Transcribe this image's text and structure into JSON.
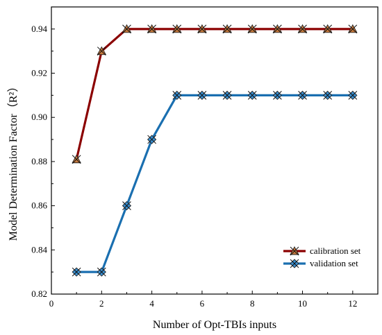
{
  "chart_data": {
    "type": "line",
    "xlabel": "Number of Opt-TBIs inputs",
    "ylabel": "Model Determination Factor（R²）",
    "xlim": [
      0,
      13
    ],
    "ylim": [
      0.82,
      0.95
    ],
    "x_ticks": [
      0,
      2,
      4,
      6,
      8,
      10,
      12
    ],
    "y_ticks": [
      0.82,
      0.84,
      0.86,
      0.88,
      0.9,
      0.92,
      0.94
    ],
    "x_tick_labels": [
      "0",
      "2",
      "4",
      "6",
      "8",
      "10",
      "12"
    ],
    "y_tick_labels": [
      "0.82",
      "0.84",
      "0.86",
      "0.88",
      "0.90",
      "0.92",
      "0.94"
    ],
    "grid": false,
    "legend_position": "bottom-right",
    "x": [
      1,
      2,
      3,
      4,
      5,
      6,
      7,
      8,
      9,
      10,
      11,
      12
    ],
    "series": [
      {
        "name": "calibration set",
        "color": "#8b0000",
        "marker": "triangle",
        "values": [
          0.881,
          0.93,
          0.94,
          0.94,
          0.94,
          0.94,
          0.94,
          0.94,
          0.94,
          0.94,
          0.94,
          0.94
        ]
      },
      {
        "name": "validation  set",
        "color": "#1a6fb0",
        "marker": "diamond",
        "values": [
          0.83,
          0.83,
          0.86,
          0.89,
          0.91,
          0.91,
          0.91,
          0.91,
          0.91,
          0.91,
          0.91,
          0.91
        ]
      }
    ]
  }
}
